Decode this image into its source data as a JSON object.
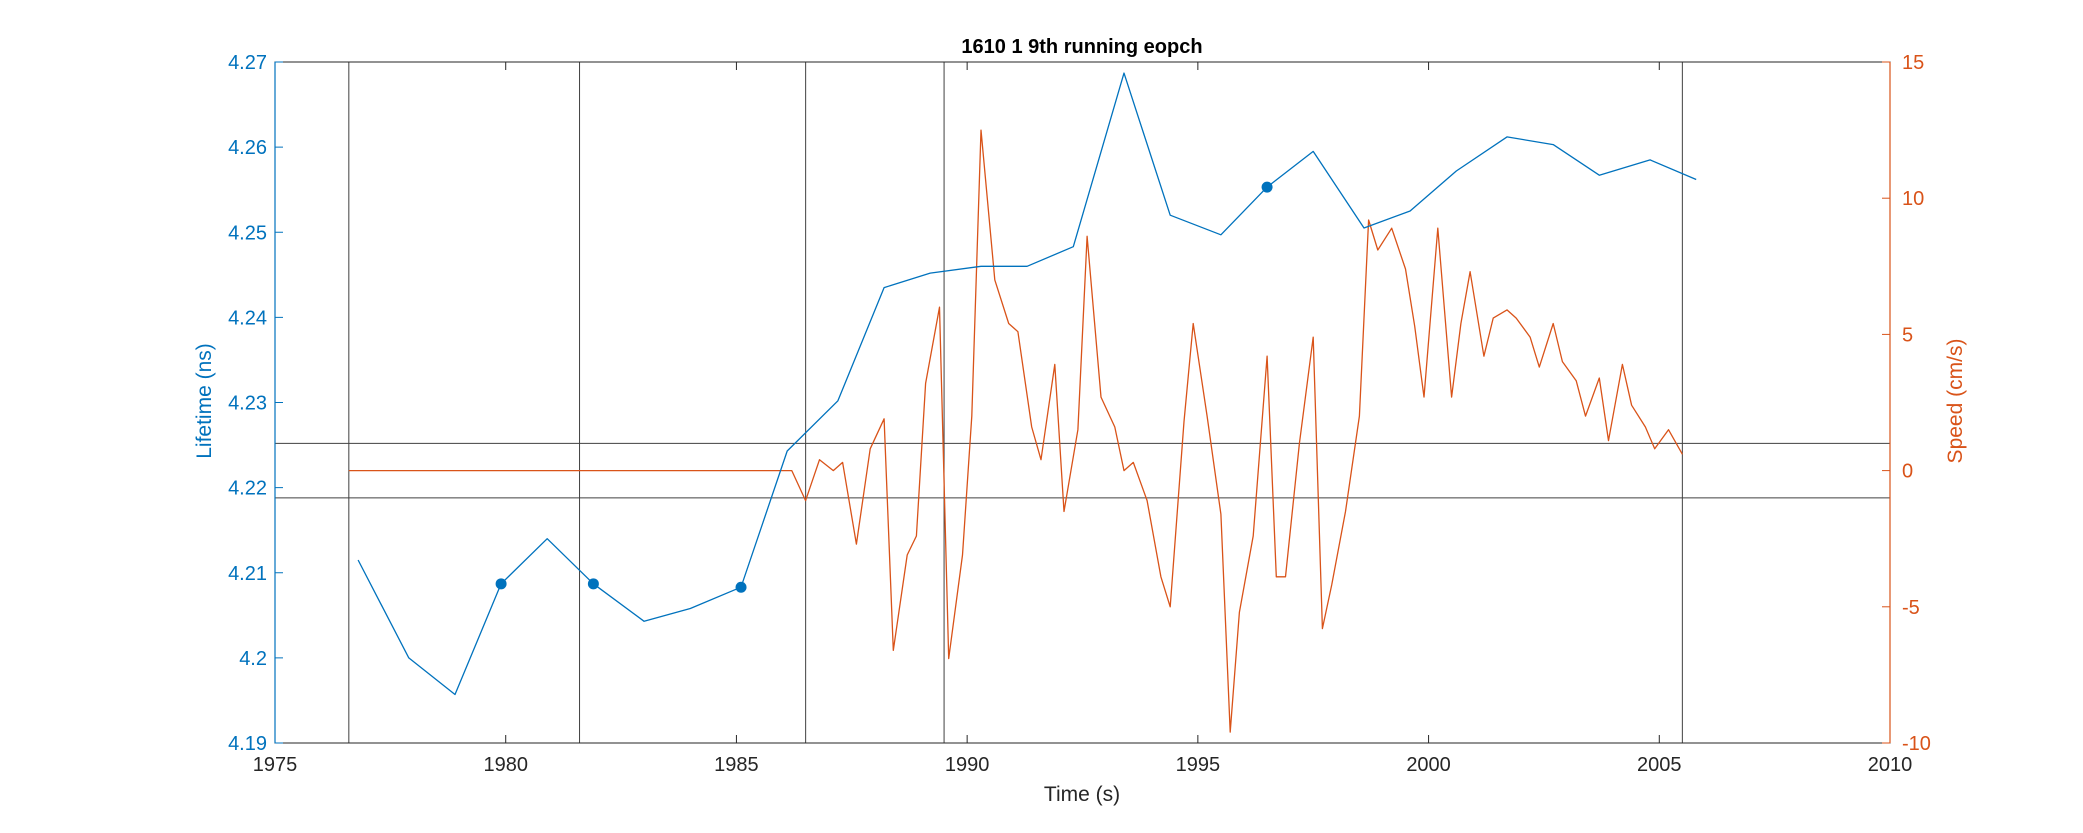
{
  "chart_data": {
    "type": "line",
    "title": "1610 1 9th running eopch",
    "xlabel": "Time (s)",
    "ylabel_left": "Lifetime (ns)",
    "ylabel_right": "Speed (cm/s)",
    "xlim": [
      1975,
      2010
    ],
    "ylim_left": [
      4.19,
      4.27
    ],
    "ylim_right": [
      -10,
      15
    ],
    "x_ticks": [
      "1975",
      "1980",
      "1985",
      "1990",
      "1995",
      "2000",
      "2005",
      "2010"
    ],
    "y_left_ticks": [
      "4.19",
      "4.2",
      "4.21",
      "4.22",
      "4.23",
      "4.24",
      "4.25",
      "4.26",
      "4.27"
    ],
    "y_right_ticks": [
      "-10",
      "-5",
      "0",
      "5",
      "10",
      "15"
    ],
    "grid": false,
    "colors": {
      "lifetime": "#0072BD",
      "speed": "#D95319",
      "ref_lines": "#404040",
      "axis": "#262626"
    },
    "vertical_lines_x": [
      1976.6,
      1981.6,
      1986.5,
      1989.5,
      2005.5
    ],
    "horizontal_lines_left": [
      4.2252,
      4.2188
    ],
    "lifetime": {
      "x": [
        1976.8,
        1977.9,
        1978.9,
        1979.9,
        1980.9,
        1981.9,
        1983.0,
        1984.0,
        1985.1,
        1986.1,
        1987.2,
        1988.2,
        1989.2,
        1990.3,
        1991.3,
        1992.3,
        1993.4,
        1994.4,
        1995.5,
        1996.5,
        1997.5,
        1998.6,
        1999.6,
        2000.6,
        2001.7,
        2002.7,
        2003.7,
        2004.8,
        2005.8
      ],
      "y": [
        4.2115,
        4.2,
        4.1957,
        4.2087,
        4.214,
        4.2087,
        4.2043,
        4.2058,
        4.2083,
        4.2243,
        4.2302,
        4.2435,
        4.2452,
        4.246,
        4.246,
        4.2483,
        4.2687,
        4.252,
        4.2497,
        4.2553,
        4.2595,
        4.2505,
        4.2525,
        4.2572,
        4.2612,
        4.2603,
        4.2567,
        4.2585,
        4.2562
      ]
    },
    "lifetime_markers": {
      "x": [
        1979.9,
        1981.9,
        1985.1,
        1996.5
      ],
      "y": [
        4.2087,
        4.2087,
        4.2083,
        4.2553
      ]
    },
    "speed": {
      "x": [
        1976.6,
        1986.2,
        1986.5,
        1986.8,
        1987.1,
        1987.3,
        1987.6,
        1987.9,
        1988.2,
        1988.4,
        1988.7,
        1988.9,
        1989.1,
        1989.4,
        1989.6,
        1989.9,
        1990.1,
        1990.3,
        1990.6,
        1990.9,
        1991.1,
        1991.4,
        1991.6,
        1991.9,
        1992.1,
        1992.4,
        1992.6,
        1992.9,
        1993.2,
        1993.4,
        1993.6,
        1993.9,
        1994.2,
        1994.4,
        1994.7,
        1994.9,
        1995.2,
        1995.5,
        1995.7,
        1995.9,
        1996.2,
        1996.5,
        1996.7,
        1996.9,
        1997.2,
        1997.5,
        1997.7,
        1997.9,
        1998.2,
        1998.5,
        1998.7,
        1998.9,
        1999.2,
        1999.5,
        1999.7,
        1999.9,
        2000.2,
        2000.5,
        2000.7,
        2000.9,
        2001.2,
        2001.4,
        2001.7,
        2001.9,
        2002.2,
        2002.4,
        2002.7,
        2002.9,
        2003.2,
        2003.4,
        2003.7,
        2003.9,
        2004.2,
        2004.4,
        2004.7,
        2004.9,
        2005.2,
        2005.5
      ],
      "y": [
        0.0,
        0.0,
        -1.1,
        0.4,
        0.0,
        0.3,
        -2.7,
        0.8,
        1.9,
        -6.6,
        -3.1,
        -2.4,
        3.2,
        6.0,
        -6.9,
        -3.1,
        2.0,
        12.5,
        7.0,
        5.4,
        5.1,
        1.6,
        0.4,
        3.9,
        -1.5,
        1.5,
        8.6,
        2.7,
        1.6,
        0.0,
        0.3,
        -1.1,
        -3.9,
        -5.0,
        1.8,
        5.4,
        2.0,
        -1.6,
        -9.6,
        -5.2,
        -2.4,
        4.2,
        -3.9,
        -3.9,
        1.0,
        4.9,
        -5.8,
        -4.2,
        -1.5,
        2.0,
        9.2,
        8.1,
        8.9,
        7.4,
        5.3,
        2.7,
        8.9,
        2.7,
        5.4,
        7.3,
        4.2,
        5.6,
        5.9,
        5.6,
        4.9,
        3.8,
        5.4,
        4.0,
        3.3,
        2.0,
        3.4,
        1.1,
        3.9,
        2.4,
        1.6,
        0.8,
        1.5,
        0.6
      ]
    }
  }
}
